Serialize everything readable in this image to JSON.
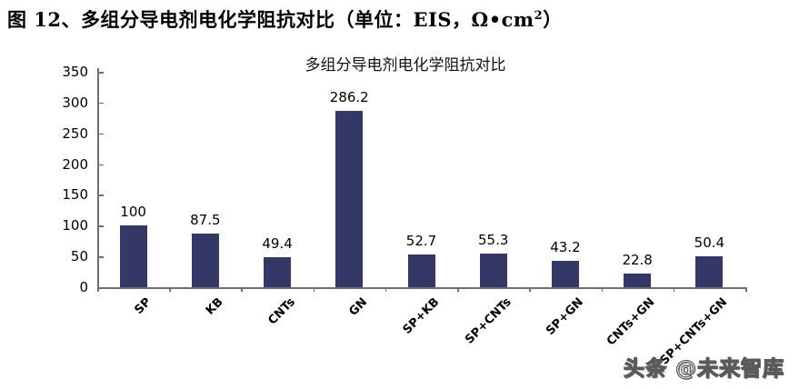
{
  "page": {
    "header_title_main": "图 12、多组分导电剂电化学阻抗对比（单位：EIS，Ω•cm",
    "header_title_sup": "2",
    "header_title_close": "）",
    "watermark": "头条 @未来智库"
  },
  "colors": {
    "bar": "#333866",
    "axis": "#6e6e6e",
    "rule": "#2d2d6e",
    "text": "#000000"
  },
  "chart_data": {
    "type": "bar",
    "title": "多组分导电剂电化学阻抗对比",
    "categories": [
      "SP",
      "KB",
      "CNTs",
      "GN",
      "SP+KB",
      "SP+CNTs",
      "SP+GN",
      "CNTs+GN",
      "SP+CNTs+GN"
    ],
    "values": [
      100,
      87.5,
      49.4,
      286.2,
      52.7,
      55.3,
      43.2,
      22.8,
      50.4
    ],
    "value_labels": [
      "100",
      "87.5",
      "49.4",
      "286.2",
      "52.7",
      "55.3",
      "43.2",
      "22.8",
      "50.4"
    ],
    "xlabel": "",
    "ylabel": "",
    "ylim": [
      0,
      350
    ],
    "yticks": [
      0,
      50,
      100,
      150,
      200,
      250,
      300,
      350
    ],
    "grid": false,
    "legend_position": "none",
    "bar_color": "#333866"
  }
}
